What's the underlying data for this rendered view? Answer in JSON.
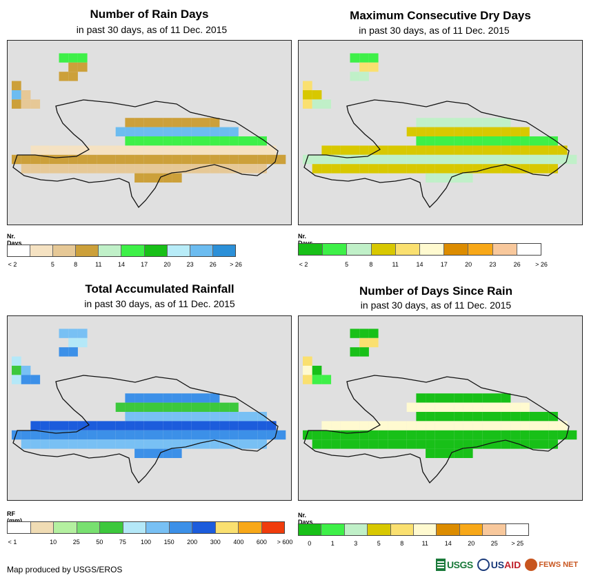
{
  "panels": [
    {
      "title": "Number of Rain Days",
      "subtitle": "in past 30 days, as of 11 Dec. 2015",
      "legend_title": "Nr. Days",
      "legend_colors": [
        "#ffffff",
        "#f5e2c2",
        "#e6c896",
        "#cca03a",
        "#c0f0c8",
        "#3ef048",
        "#18c018",
        "#b8ecf8",
        "#6cbcf0",
        "#2c90d8"
      ],
      "legend_labels": [
        "< 2",
        "5",
        "8",
        "11",
        "14",
        "17",
        "20",
        "23",
        "26",
        "> 26"
      ],
      "label_positions": "boundary"
    },
    {
      "title": "Maximum Consecutive Dry Days",
      "subtitle": "in past 30 days, as of 11 Dec. 2015",
      "legend_title": "Nr. Days",
      "legend_colors": [
        "#18c018",
        "#3ef048",
        "#c0f0c8",
        "#d8c800",
        "#fae070",
        "#fffad0",
        "#dc8c00",
        "#f8a818",
        "#f8c89c",
        "#ffffff"
      ],
      "legend_labels": [
        "< 2",
        "5",
        "8",
        "11",
        "14",
        "17",
        "20",
        "23",
        "26",
        "> 26"
      ],
      "label_positions": "boundary"
    },
    {
      "title": "Total Accumulated Rainfall",
      "subtitle": "in past 30 days, as of 11 Dec. 2015",
      "legend_title": "RF (mm)",
      "legend_colors": [
        "#ffffff",
        "#f0dcb4",
        "#b4f0a0",
        "#78e070",
        "#3cc83c",
        "#b4e8f8",
        "#78c0f4",
        "#3c90e8",
        "#1c5cdc",
        "#fae070",
        "#f8a818",
        "#f03c0c"
      ],
      "legend_labels": [
        "< 1",
        "10",
        "25",
        "50",
        "75",
        "100",
        "150",
        "200",
        "300",
        "400",
        "600",
        "> 600"
      ],
      "label_positions": "boundary"
    },
    {
      "title": "Number of Days Since Rain",
      "subtitle": "in past 30 days, as of 11 Dec. 2015",
      "legend_title": "Nr. Days",
      "legend_colors": [
        "#18c018",
        "#3ef048",
        "#c0f0c8",
        "#d8c800",
        "#fae070",
        "#fffad0",
        "#dc8c00",
        "#f8a818",
        "#f8c89c",
        "#ffffff"
      ],
      "legend_labels": [
        "0",
        "1",
        "3",
        "5",
        "8",
        "11",
        "14",
        "20",
        "25",
        "> 25"
      ],
      "label_positions": "center"
    }
  ],
  "credit": "Map produced by USGS/EROS",
  "logos": {
    "usgs": "USGS",
    "usaid_prefix": "US",
    "usaid_suffix": "AID",
    "fews": "FEWS NET"
  }
}
